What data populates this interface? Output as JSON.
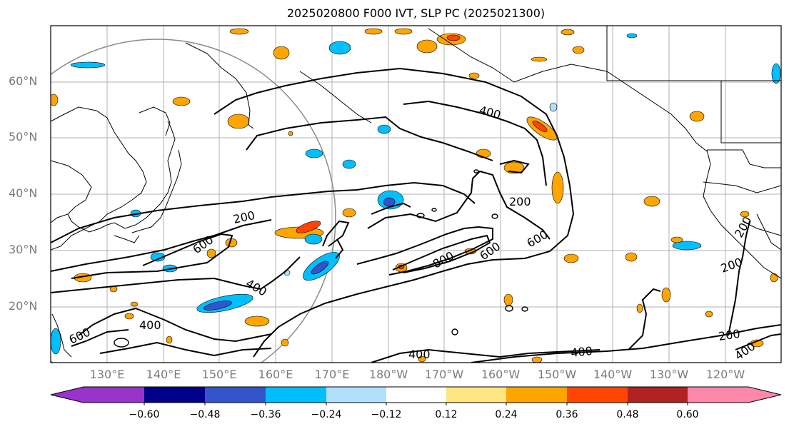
{
  "title": "2025020800 F000 IVT, SLP PC (2025021300)",
  "lat_labels": [
    "60°N",
    "50°N",
    "40°N",
    "30°N",
    "20°N"
  ],
  "lon_labels": [
    "130°E",
    "140°E",
    "150°E",
    "160°E",
    "170°E",
    "180°W",
    "170°W",
    "160°W",
    "150°W",
    "140°W",
    "130°W",
    "120°W"
  ],
  "contour_labels": [
    "400",
    "200",
    "200",
    "600",
    "600",
    "600",
    "800",
    "400",
    "400",
    "600",
    "200",
    "200",
    "200",
    "400",
    "400",
    "400"
  ],
  "colorbar": {
    "ticks": [
      "−0.60",
      "−0.48",
      "−0.36",
      "−0.24",
      "−0.12",
      "0.12",
      "0.24",
      "0.36",
      "0.48",
      "0.60"
    ],
    "colors": [
      "#9933cc",
      "#00008b",
      "#3355cc",
      "#00bfff",
      "#b0e0fa",
      "#ffffff",
      "#ffe680",
      "#ffa500",
      "#ff4500",
      "#b22222",
      "#ff88aa",
      "#ff88aa"
    ]
  }
}
